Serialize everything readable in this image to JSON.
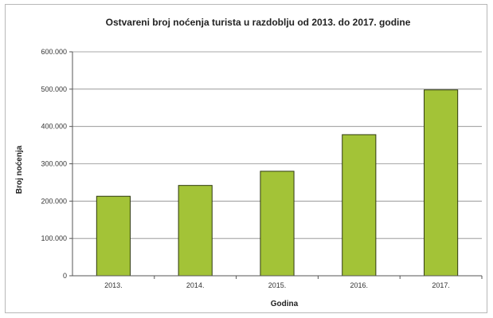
{
  "chart_data": {
    "type": "bar",
    "title": "Ostvareni broj noćenja turista u razdoblju od 2013. do 2017. godine",
    "xlabel": "Godina",
    "ylabel": "Broj noćenja",
    "categories": [
      "2013.",
      "2014.",
      "2015.",
      "2016.",
      "2017."
    ],
    "values": [
      213000,
      242000,
      280000,
      378000,
      498000
    ],
    "ylim": [
      0,
      600000
    ],
    "yticks": [
      0,
      100000,
      200000,
      300000,
      400000,
      500000,
      600000
    ],
    "ytick_labels": [
      "0",
      "100.000",
      "200.000",
      "300.000",
      "400.000",
      "500.000",
      "600.000"
    ],
    "grid": true,
    "legend": "none",
    "bar_color": "#a3c337",
    "bar_edge_color": "#2f3a10"
  }
}
